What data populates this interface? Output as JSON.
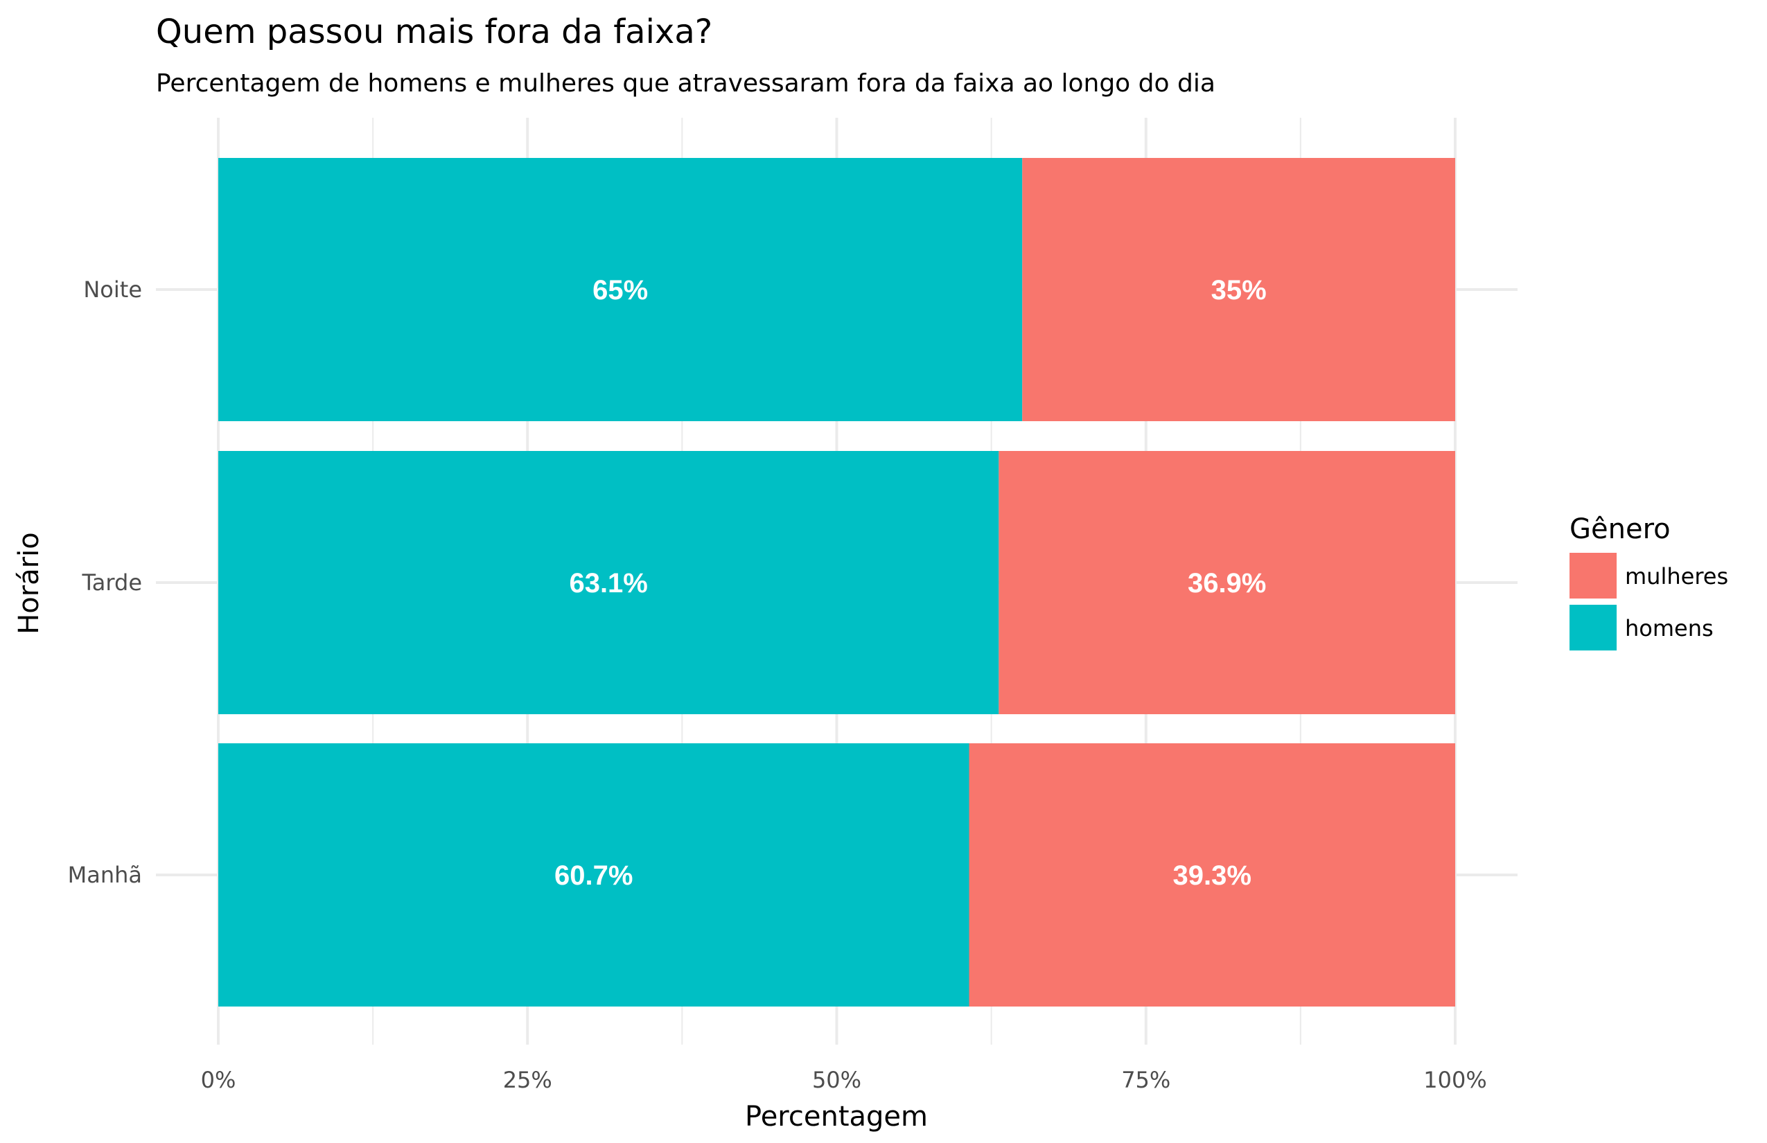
{
  "chart_data": {
    "type": "bar",
    "orientation": "horizontal",
    "stacked": true,
    "title": "Quem passou mais fora da faixa?",
    "subtitle": "Percentagem de homens e mulheres que atravessaram fora da faixa ao longo do dia",
    "xlabel": "Percentagem",
    "ylabel": "Horário",
    "xlim": [
      0,
      100
    ],
    "x_ticks": [
      "0%",
      "25%",
      "50%",
      "75%",
      "100%"
    ],
    "categories": [
      "Manhã",
      "Tarde",
      "Noite"
    ],
    "series": [
      {
        "name": "homens",
        "color": "#00BFC4",
        "values": [
          60.7,
          63.1,
          65
        ],
        "labels": [
          "60.7%",
          "63.1%",
          "65%"
        ]
      },
      {
        "name": "mulheres",
        "color": "#F8766D",
        "values": [
          39.3,
          36.9,
          35
        ],
        "labels": [
          "39.3%",
          "36.9%",
          "35%"
        ]
      }
    ],
    "legend": {
      "title": "Gênero",
      "position": "right",
      "items": [
        {
          "label": "mulheres",
          "color": "#F8766D"
        },
        {
          "label": "homens",
          "color": "#00BFC4"
        }
      ]
    },
    "grid": true
  }
}
